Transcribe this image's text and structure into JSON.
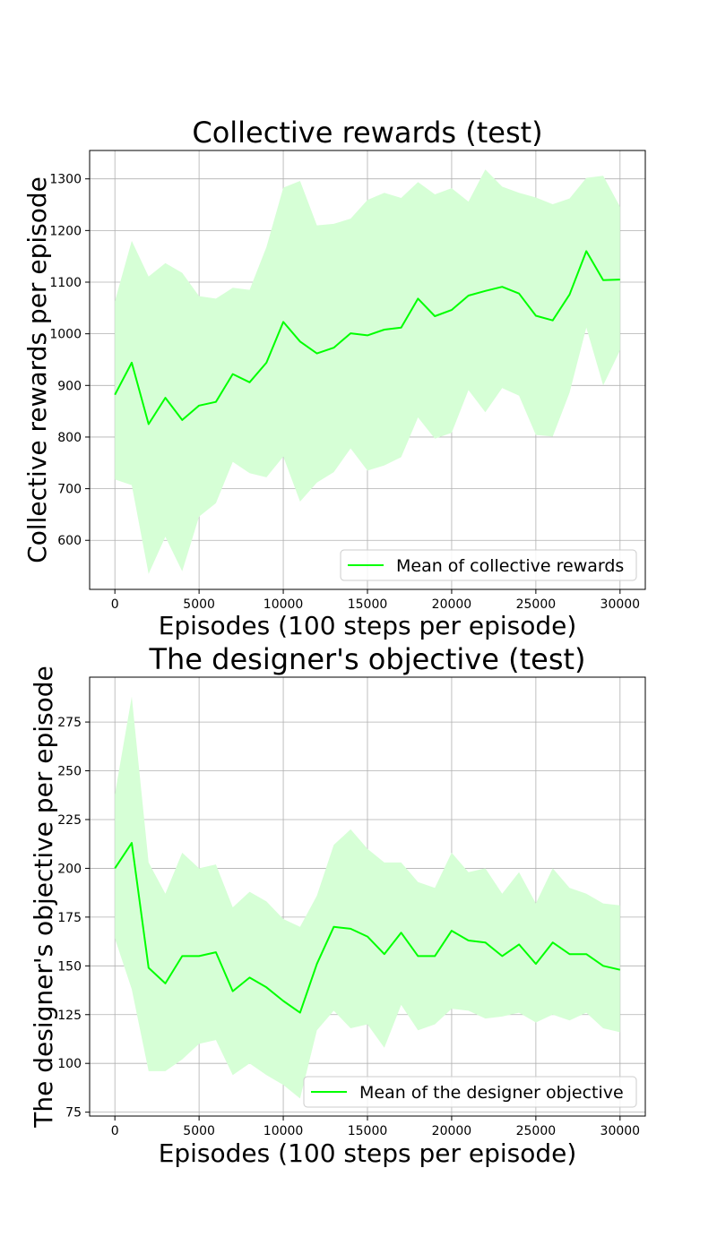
{
  "chart_data": [
    {
      "type": "line",
      "title": "Collective rewards (test)",
      "xlabel": "Episodes (100 steps per episode)",
      "ylabel": "Collective rewards per episode",
      "xlim": [
        -1500,
        31500
      ],
      "ylim": [
        505,
        1355
      ],
      "xticks": [
        0,
        5000,
        10000,
        15000,
        20000,
        25000,
        30000
      ],
      "yticks": [
        600,
        700,
        800,
        900,
        1000,
        1100,
        1200,
        1300
      ],
      "grid": true,
      "legend_position": "lower-right",
      "line_color": "#00ff00",
      "band_color": "#d6ffd6",
      "x": [
        0,
        1000,
        2000,
        3000,
        4000,
        5000,
        6000,
        7000,
        8000,
        9000,
        10000,
        11000,
        12000,
        13000,
        14000,
        15000,
        16000,
        17000,
        18000,
        19000,
        20000,
        21000,
        22000,
        23000,
        24000,
        25000,
        26000,
        27000,
        28000,
        29000,
        30000
      ],
      "series": [
        {
          "name": "Mean of collective rewards",
          "values": [
            882,
            944,
            825,
            876,
            833,
            861,
            868,
            922,
            906,
            944,
            1023,
            985,
            962,
            973,
            1001,
            997,
            1008,
            1012,
            1068,
            1034,
            1046,
            1074,
            1083,
            1091,
            1078,
            1035,
            1026,
            1076,
            1160,
            1104,
            1105
          ],
          "upper": [
            1063,
            1180,
            1111,
            1137,
            1118,
            1073,
            1068,
            1089,
            1085,
            1168,
            1283,
            1296,
            1210,
            1213,
            1223,
            1259,
            1273,
            1263,
            1294,
            1270,
            1282,
            1256,
            1318,
            1285,
            1273,
            1264,
            1251,
            1262,
            1302,
            1306,
            1246
          ],
          "lower": [
            718,
            707,
            535,
            607,
            540,
            646,
            672,
            752,
            730,
            722,
            762,
            675,
            712,
            732,
            778,
            735,
            745,
            761,
            838,
            797,
            808,
            891,
            848,
            895,
            880,
            804,
            801,
            886,
            1012,
            900,
            968
          ]
        }
      ]
    },
    {
      "type": "line",
      "title": "The designer's objective (test)",
      "xlabel": "Episodes (100 steps per episode)",
      "ylabel": "The designer's objective per episode",
      "xlim": [
        -1500,
        31500
      ],
      "ylim": [
        73,
        298
      ],
      "xticks": [
        0,
        5000,
        10000,
        15000,
        20000,
        25000,
        30000
      ],
      "yticks": [
        75,
        100,
        125,
        150,
        175,
        200,
        225,
        250,
        275
      ],
      "grid": true,
      "legend_position": "lower-right",
      "line_color": "#00ff00",
      "band_color": "#d6ffd6",
      "x": [
        0,
        1000,
        2000,
        3000,
        4000,
        5000,
        6000,
        7000,
        8000,
        9000,
        10000,
        11000,
        12000,
        13000,
        14000,
        15000,
        16000,
        17000,
        18000,
        19000,
        20000,
        21000,
        22000,
        23000,
        24000,
        25000,
        26000,
        27000,
        28000,
        29000,
        30000
      ],
      "series": [
        {
          "name": "Mean of the designer objective",
          "values": [
            200,
            213,
            149,
            141,
            155,
            155,
            157,
            137,
            144,
            139,
            132,
            126,
            151,
            170,
            169,
            165,
            156,
            167,
            155,
            155,
            168,
            163,
            162,
            155,
            161,
            151,
            162,
            156,
            156,
            150,
            148
          ],
          "upper": [
            238,
            288,
            203,
            187,
            208,
            200,
            202,
            180,
            188,
            183,
            174,
            170,
            186,
            212,
            220,
            210,
            203,
            203,
            193,
            190,
            208,
            198,
            200,
            187,
            198,
            182,
            200,
            190,
            187,
            182,
            181
          ],
          "lower": [
            164,
            138,
            96,
            96,
            102,
            110,
            112,
            94,
            100,
            94,
            89,
            82,
            117,
            127,
            118,
            120,
            108,
            130,
            117,
            120,
            128,
            127,
            123,
            124,
            126,
            121,
            125,
            122,
            126,
            118,
            116
          ]
        }
      ]
    }
  ]
}
